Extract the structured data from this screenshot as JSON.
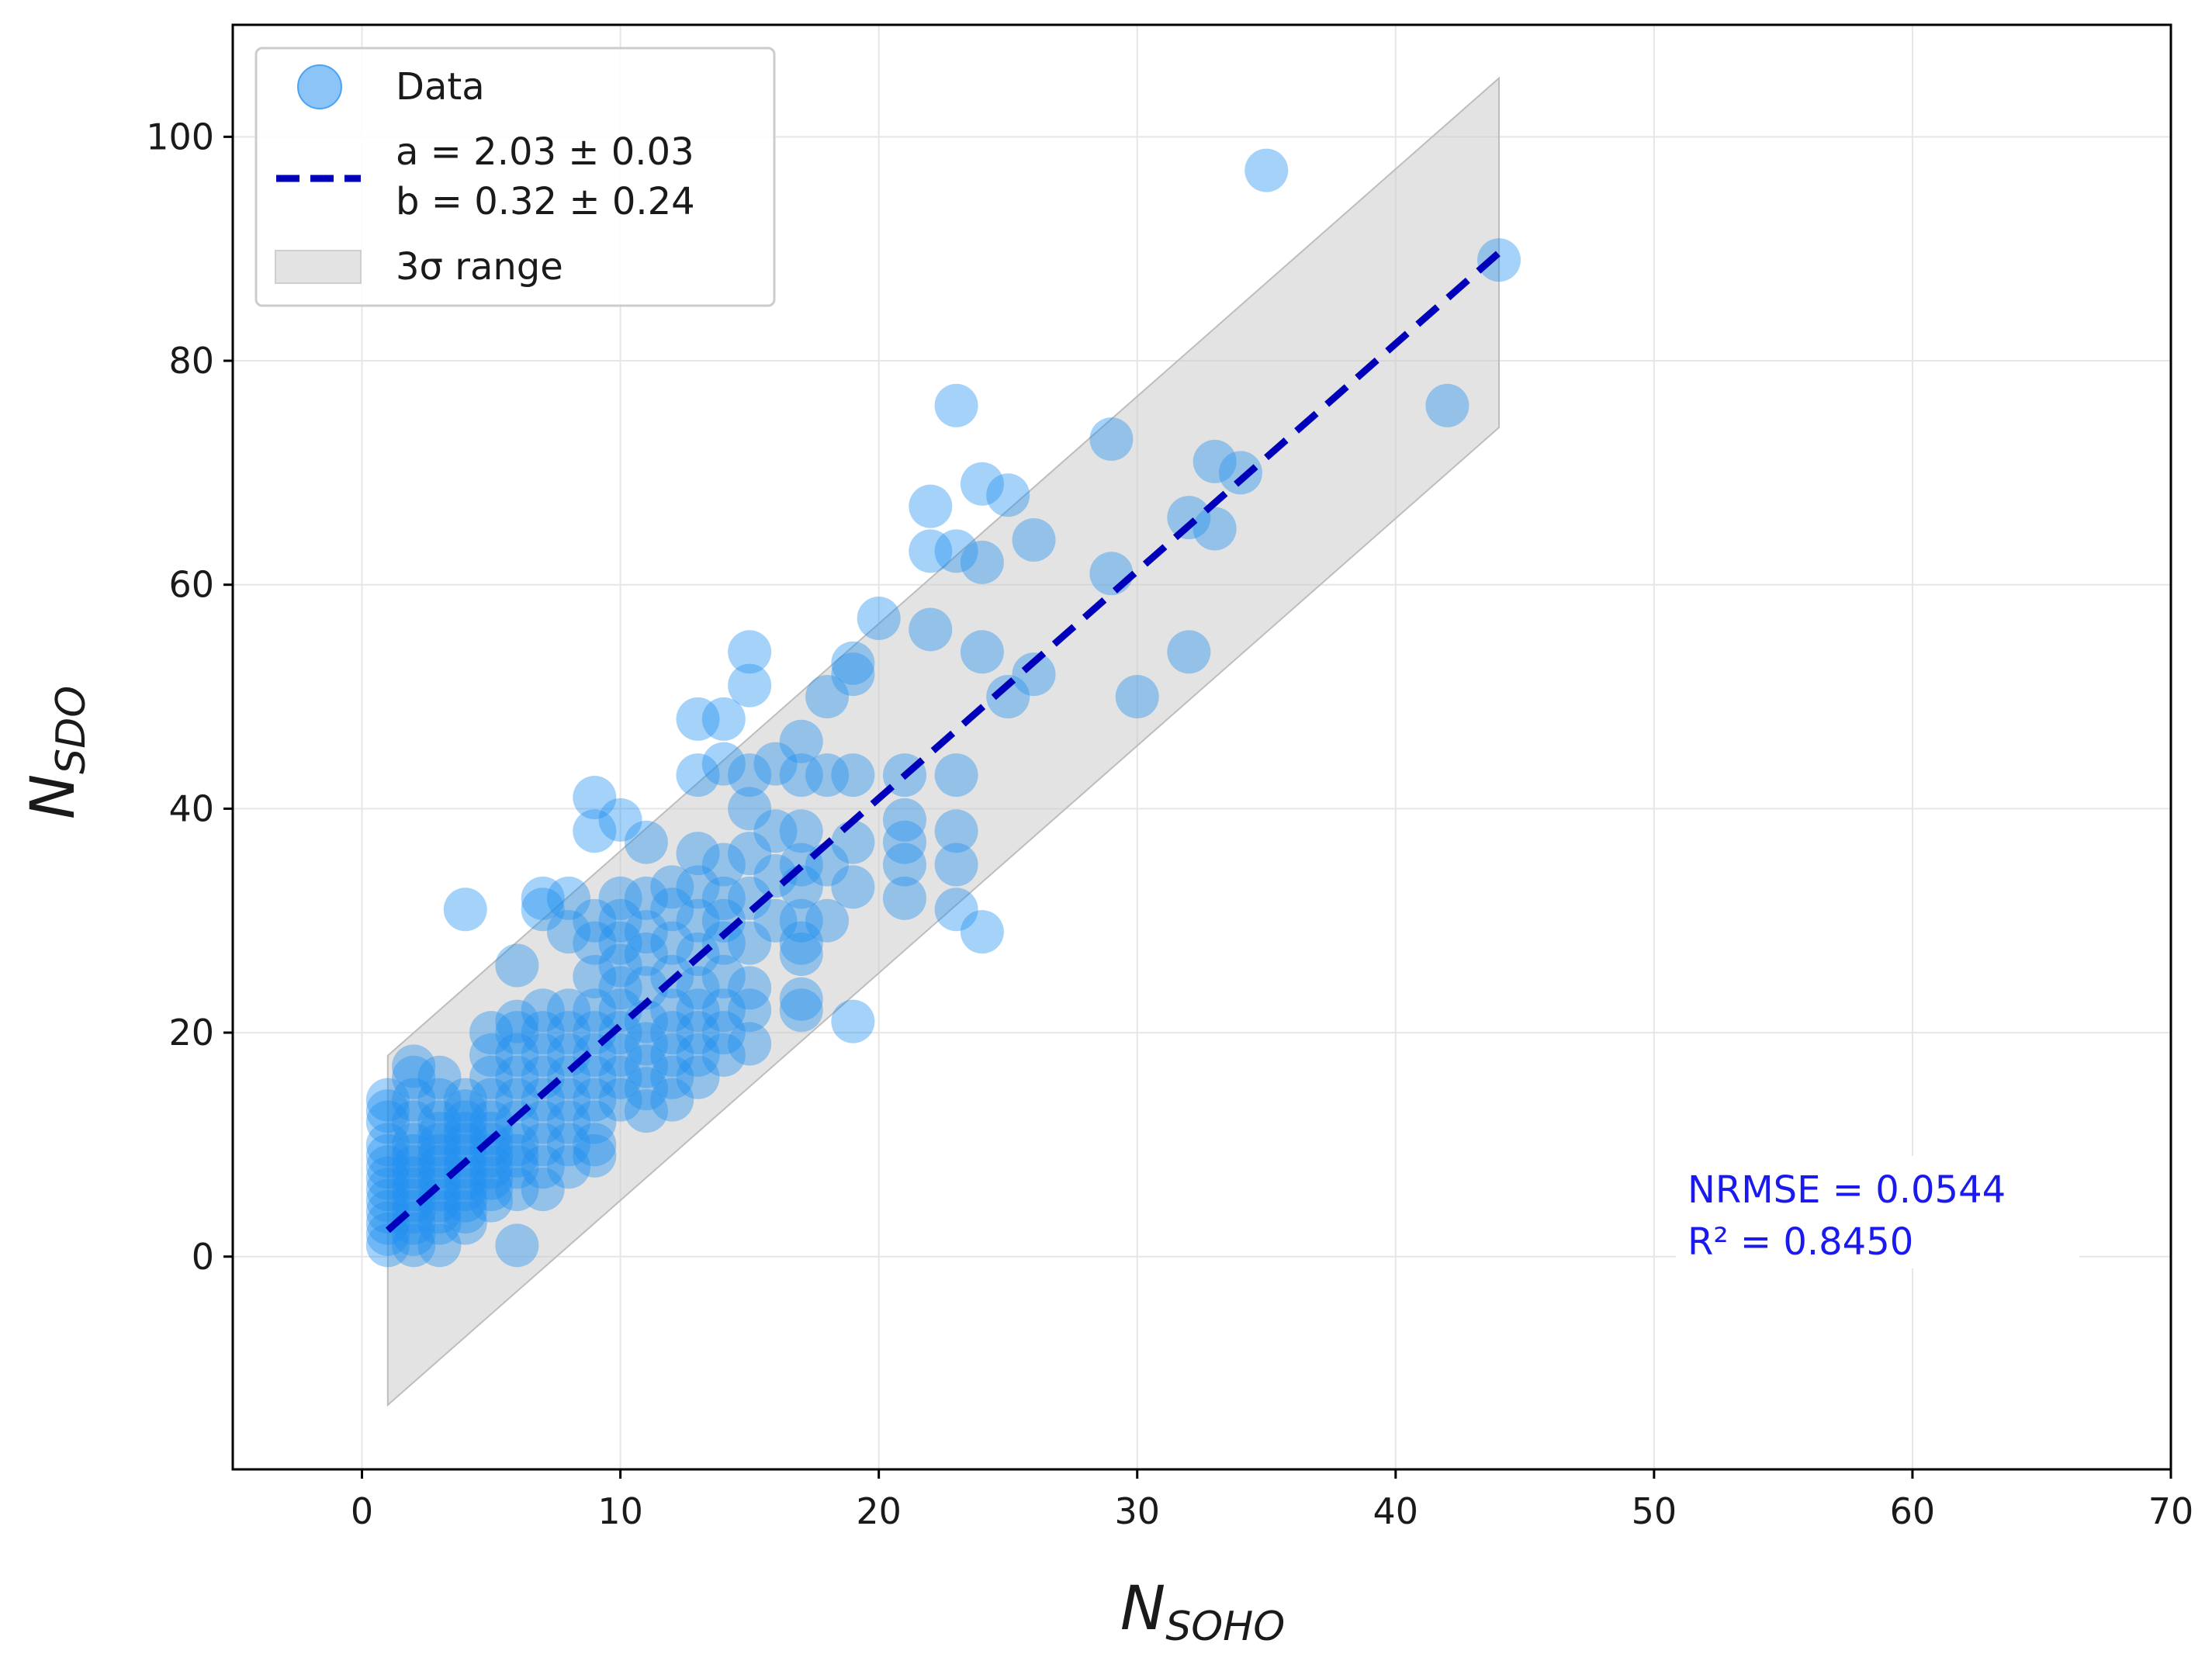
{
  "colors": {
    "point": "#1f8ef1",
    "fit_line": "#0000bb",
    "band": "#c8c8c8",
    "grid": "#e6e6e6",
    "axis": "#000000",
    "stats": "#1a1aee"
  },
  "chart_data": {
    "type": "scatter",
    "title": "",
    "xlabel": {
      "main": "N",
      "sub": "SOHO"
    },
    "ylabel": {
      "main": "N",
      "sub": "SDO"
    },
    "xlim": [
      -5,
      70
    ],
    "ylim": [
      -19,
      110
    ],
    "xticks": [
      0,
      10,
      20,
      30,
      40,
      50,
      60,
      70
    ],
    "yticks": [
      0,
      20,
      40,
      60,
      80,
      100
    ],
    "grid": true,
    "legend_position": "top-left",
    "legend": {
      "data_label": "Data",
      "fit_label_a": "a = 2.03 ± 0.03",
      "fit_label_b": "b = 0.32 ± 0.24",
      "band_label": "3σ range"
    },
    "fit": {
      "slope": 2.03,
      "intercept": 0.32,
      "x_range": [
        1,
        44
      ]
    },
    "band": {
      "half_width": 15.6,
      "x_range": [
        1,
        44
      ]
    },
    "stats": {
      "nrmse": "NRMSE = 0.0544",
      "r2": "R² = 0.8450"
    },
    "points": [
      [
        1,
        1
      ],
      [
        1,
        2
      ],
      [
        1,
        3
      ],
      [
        1,
        4
      ],
      [
        1,
        5
      ],
      [
        1,
        6
      ],
      [
        1,
        7
      ],
      [
        1,
        8
      ],
      [
        1,
        9
      ],
      [
        1,
        10
      ],
      [
        1,
        12
      ],
      [
        1,
        13
      ],
      [
        1,
        14
      ],
      [
        2,
        1
      ],
      [
        2,
        2
      ],
      [
        2,
        3
      ],
      [
        2,
        4
      ],
      [
        2,
        5
      ],
      [
        2,
        6
      ],
      [
        2,
        7
      ],
      [
        2,
        8
      ],
      [
        2,
        9
      ],
      [
        2,
        10
      ],
      [
        2,
        12
      ],
      [
        2,
        14
      ],
      [
        2,
        16
      ],
      [
        2,
        17
      ],
      [
        3,
        1
      ],
      [
        3,
        3
      ],
      [
        3,
        4
      ],
      [
        3,
        5
      ],
      [
        3,
        6
      ],
      [
        3,
        7
      ],
      [
        3,
        8
      ],
      [
        3,
        9
      ],
      [
        3,
        10
      ],
      [
        3,
        11
      ],
      [
        3,
        12
      ],
      [
        3,
        14
      ],
      [
        3,
        16
      ],
      [
        4,
        3
      ],
      [
        4,
        4
      ],
      [
        4,
        5
      ],
      [
        4,
        6
      ],
      [
        4,
        7
      ],
      [
        4,
        8
      ],
      [
        4,
        9
      ],
      [
        4,
        10
      ],
      [
        4,
        11
      ],
      [
        4,
        12
      ],
      [
        4,
        13
      ],
      [
        4,
        14
      ],
      [
        4,
        31
      ],
      [
        5,
        5
      ],
      [
        5,
        6
      ],
      [
        5,
        7
      ],
      [
        5,
        8
      ],
      [
        5,
        9
      ],
      [
        5,
        10
      ],
      [
        5,
        11
      ],
      [
        5,
        12
      ],
      [
        5,
        14
      ],
      [
        5,
        16
      ],
      [
        5,
        18
      ],
      [
        5,
        20
      ],
      [
        6,
        1
      ],
      [
        6,
        6
      ],
      [
        6,
        8
      ],
      [
        6,
        9
      ],
      [
        6,
        10
      ],
      [
        6,
        12
      ],
      [
        6,
        14
      ],
      [
        6,
        16
      ],
      [
        6,
        18
      ],
      [
        6,
        20
      ],
      [
        6,
        21
      ],
      [
        6,
        26
      ],
      [
        7,
        6
      ],
      [
        7,
        8
      ],
      [
        7,
        10
      ],
      [
        7,
        12
      ],
      [
        7,
        14
      ],
      [
        7,
        16
      ],
      [
        7,
        18
      ],
      [
        7,
        20
      ],
      [
        7,
        22
      ],
      [
        7,
        31
      ],
      [
        7,
        32
      ],
      [
        8,
        8
      ],
      [
        8,
        10
      ],
      [
        8,
        12
      ],
      [
        8,
        14
      ],
      [
        8,
        16
      ],
      [
        8,
        18
      ],
      [
        8,
        20
      ],
      [
        8,
        22
      ],
      [
        8,
        29
      ],
      [
        8,
        32
      ],
      [
        9,
        9
      ],
      [
        9,
        10
      ],
      [
        9,
        12
      ],
      [
        9,
        14
      ],
      [
        9,
        16
      ],
      [
        9,
        18
      ],
      [
        9,
        20
      ],
      [
        9,
        22
      ],
      [
        9,
        25
      ],
      [
        9,
        28
      ],
      [
        9,
        30
      ],
      [
        9,
        38
      ],
      [
        9,
        41
      ],
      [
        10,
        14
      ],
      [
        10,
        16
      ],
      [
        10,
        18
      ],
      [
        10,
        20
      ],
      [
        10,
        22
      ],
      [
        10,
        24
      ],
      [
        10,
        26
      ],
      [
        10,
        28
      ],
      [
        10,
        30
      ],
      [
        10,
        32
      ],
      [
        10,
        39
      ],
      [
        11,
        13
      ],
      [
        11,
        15
      ],
      [
        11,
        17
      ],
      [
        11,
        19
      ],
      [
        11,
        21
      ],
      [
        11,
        24
      ],
      [
        11,
        27
      ],
      [
        11,
        29
      ],
      [
        11,
        32
      ],
      [
        11,
        37
      ],
      [
        12,
        14
      ],
      [
        12,
        16
      ],
      [
        12,
        18
      ],
      [
        12,
        20
      ],
      [
        12,
        22
      ],
      [
        12,
        25
      ],
      [
        12,
        28
      ],
      [
        12,
        31
      ],
      [
        12,
        33
      ],
      [
        13,
        16
      ],
      [
        13,
        18
      ],
      [
        13,
        20
      ],
      [
        13,
        22
      ],
      [
        13,
        24
      ],
      [
        13,
        27
      ],
      [
        13,
        30
      ],
      [
        13,
        33
      ],
      [
        13,
        36
      ],
      [
        13,
        43
      ],
      [
        13,
        48
      ],
      [
        14,
        18
      ],
      [
        14,
        20
      ],
      [
        14,
        22
      ],
      [
        14,
        25
      ],
      [
        14,
        28
      ],
      [
        14,
        30
      ],
      [
        14,
        32
      ],
      [
        14,
        35
      ],
      [
        14,
        44
      ],
      [
        14,
        48
      ],
      [
        15,
        19
      ],
      [
        15,
        22
      ],
      [
        15,
        24
      ],
      [
        15,
        28
      ],
      [
        15,
        32
      ],
      [
        15,
        36
      ],
      [
        15,
        40
      ],
      [
        15,
        43
      ],
      [
        15,
        51
      ],
      [
        15,
        54
      ],
      [
        16,
        30
      ],
      [
        16,
        34
      ],
      [
        16,
        38
      ],
      [
        16,
        44
      ],
      [
        17,
        22
      ],
      [
        17,
        23
      ],
      [
        17,
        27
      ],
      [
        17,
        28
      ],
      [
        17,
        30
      ],
      [
        17,
        33
      ],
      [
        17,
        35
      ],
      [
        17,
        38
      ],
      [
        17,
        43
      ],
      [
        17,
        46
      ],
      [
        18,
        30
      ],
      [
        18,
        35
      ],
      [
        18,
        43
      ],
      [
        18,
        50
      ],
      [
        19,
        21
      ],
      [
        19,
        33
      ],
      [
        19,
        37
      ],
      [
        19,
        43
      ],
      [
        19,
        52
      ],
      [
        19,
        53
      ],
      [
        20,
        57
      ],
      [
        21,
        32
      ],
      [
        21,
        35
      ],
      [
        21,
        37
      ],
      [
        21,
        39
      ],
      [
        21,
        43
      ],
      [
        22,
        56
      ],
      [
        22,
        63
      ],
      [
        22,
        67
      ],
      [
        23,
        31
      ],
      [
        23,
        35
      ],
      [
        23,
        38
      ],
      [
        23,
        43
      ],
      [
        23,
        63
      ],
      [
        23,
        76
      ],
      [
        24,
        29
      ],
      [
        24,
        54
      ],
      [
        24,
        62
      ],
      [
        24,
        69
      ],
      [
        25,
        50
      ],
      [
        25,
        68
      ],
      [
        26,
        52
      ],
      [
        26,
        64
      ],
      [
        29,
        61
      ],
      [
        29,
        73
      ],
      [
        30,
        50
      ],
      [
        32,
        54
      ],
      [
        32,
        66
      ],
      [
        33,
        65
      ],
      [
        33,
        71
      ],
      [
        34,
        70
      ],
      [
        35,
        97
      ],
      [
        42,
        76
      ],
      [
        44,
        89
      ]
    ]
  }
}
